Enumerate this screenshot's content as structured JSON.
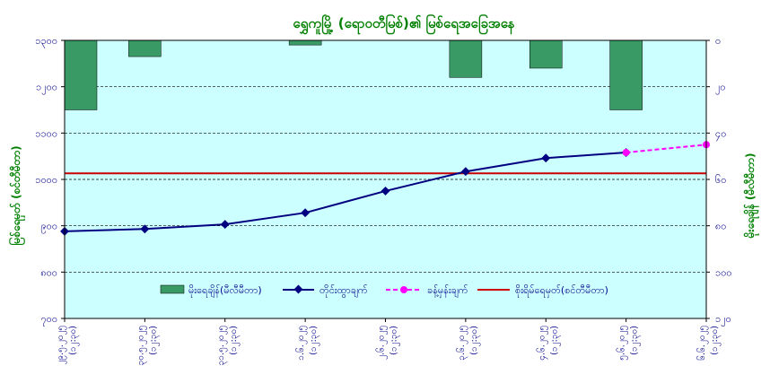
{
  "chart_data": {
    "type": "bar+line",
    "title": "ရွှေကူမြို့ (ရောဝတီမြစ်)၏ မြစ်ရေအခြေအနေ",
    "ylabel_left": "မြစ်ရေမှတ် (စင်တီမီတာ)",
    "ylabel_right": "မိုးရေချိန် (မီလီမီတာ)",
    "ylim_left": [
      700,
      1300
    ],
    "ylim_right": [
      120,
      0
    ],
    "yticks_left": [
      "၇၀၀",
      "၈၀၀",
      "၉၀၀",
      "၁၀၀၀",
      "၁၁၀၀",
      "၁၂၀၀",
      "၁၃၀၀"
    ],
    "yticks_left_values": [
      700,
      800,
      900,
      1000,
      1100,
      1200,
      1300
    ],
    "yticks_right": [
      "၀",
      "၂၀",
      "၄၀",
      "၆၀",
      "၈၀",
      "၁၀၀",
      "၁၂၀"
    ],
    "yticks_right_values": [
      0,
      20,
      40,
      60,
      80,
      100,
      120
    ],
    "categories": [
      {
        "date": "၂၉.၅.၂၀၂၅",
        "time": "(၁၂:၃၀)"
      },
      {
        "date": "၃၀.၅.၂၀၂၅",
        "time": "(၁၂:၃၀)"
      },
      {
        "date": "၃၁.၅.၂၀၂၅",
        "time": "(၁၂:၃၀)"
      },
      {
        "date": "၁.၆.၂၀၂၅",
        "time": "(၁၂:၃၀)"
      },
      {
        "date": "၂.၆.၂၀၂၅",
        "time": "(၁၂:၃၀)"
      },
      {
        "date": "၃.၆.၂၀၂၅",
        "time": "(၁၂:၃၀)"
      },
      {
        "date": "၄.၆.၂၀၂၅",
        "time": "(၁၂:၃၀)"
      },
      {
        "date": "၅.၆.၂၀၂၅",
        "time": "(၁၂:၃၀)"
      },
      {
        "date": "၆.၆.၂၀၂၅",
        "time": "(၁၂:၃၀)"
      }
    ],
    "series": [
      {
        "name": "မိုးရေချိန်(မီလီမီတာ)",
        "kind": "bar",
        "axis": "right",
        "color": "#3a9a66",
        "values": [
          30,
          7,
          0,
          2,
          0,
          16,
          12,
          30,
          0
        ]
      },
      {
        "name": "တိုင်းထွာချက်",
        "kind": "line",
        "axis": "left",
        "color": "#000080",
        "values": [
          888,
          893,
          903,
          928,
          975,
          1017,
          1046,
          1058,
          null
        ]
      },
      {
        "name": "ခန့်မှန်းချက်",
        "kind": "line-dashed",
        "axis": "left",
        "color": "#ff00ff",
        "values": [
          null,
          null,
          null,
          null,
          null,
          null,
          null,
          1058,
          1075
        ]
      },
      {
        "name": "စိုးရိမ်ရေမှတ်(စင်တီမီတာ)",
        "kind": "hline",
        "axis": "left",
        "color": "#cc0000",
        "value": 1013
      }
    ],
    "grid": true,
    "legend": "bottom-center"
  }
}
